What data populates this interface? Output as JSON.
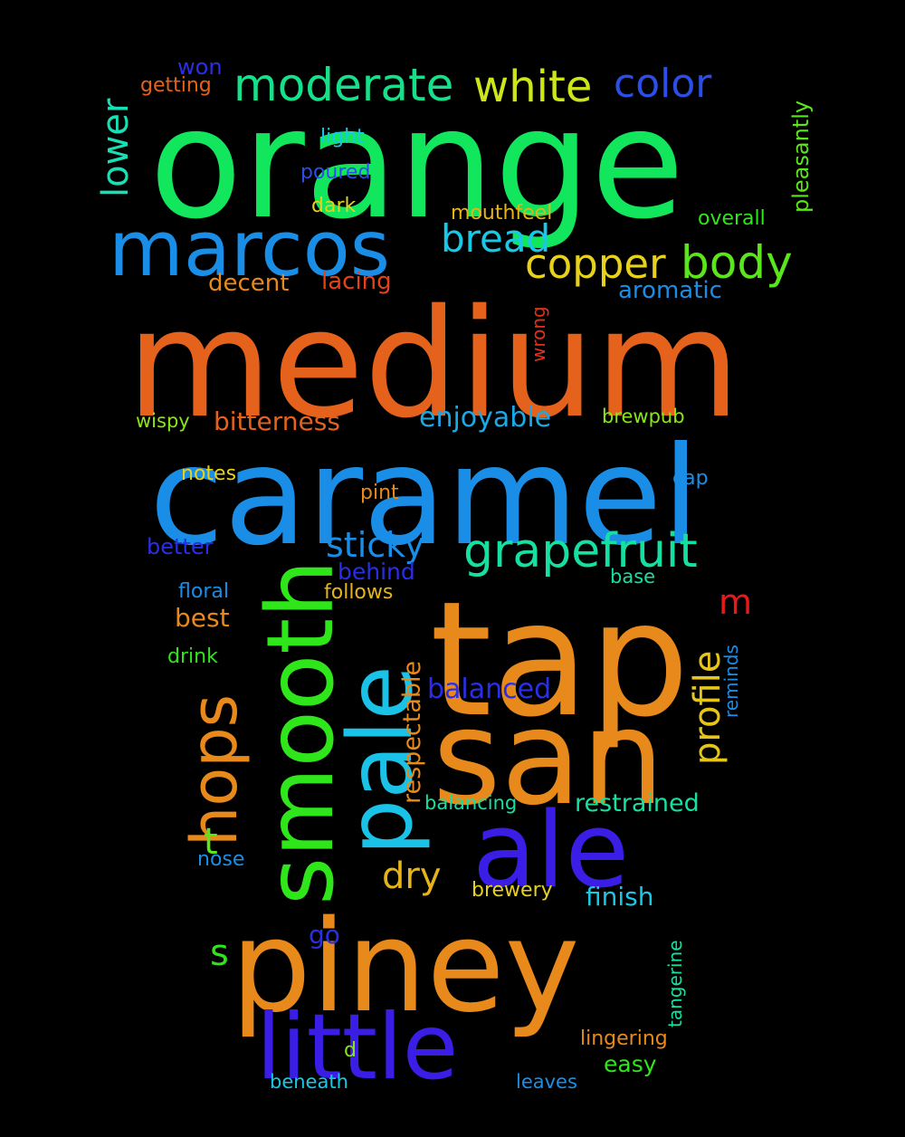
{
  "words": [
    {
      "text": "orange",
      "color": "#12e65c"
    },
    {
      "text": "medium",
      "color": "#e4621b"
    },
    {
      "text": "caramel",
      "color": "#1a8ee6"
    },
    {
      "text": "tap",
      "color": "#e8891c"
    },
    {
      "text": "san",
      "color": "#e8891c"
    },
    {
      "text": "piney",
      "color": "#e8891c"
    },
    {
      "text": "ale",
      "color": "#3a1ee6"
    },
    {
      "text": "little",
      "color": "#3a1ee6"
    },
    {
      "text": "marcos",
      "color": "#1a8ee6"
    },
    {
      "text": "smooth",
      "color": "#2ee61a"
    },
    {
      "text": "pale",
      "color": "#19c2e6"
    },
    {
      "text": "hops",
      "color": "#e8891c"
    },
    {
      "text": "grapefruit",
      "color": "#16e0a0"
    },
    {
      "text": "moderate",
      "color": "#16e08a"
    },
    {
      "text": "white",
      "color": "#cde61a"
    },
    {
      "text": "color",
      "color": "#2a4ee6"
    },
    {
      "text": "copper",
      "color": "#e6d21a"
    },
    {
      "text": "body",
      "color": "#5ae61a"
    },
    {
      "text": "bread",
      "color": "#19c8e6"
    },
    {
      "text": "lower",
      "color": "#16e0b4"
    },
    {
      "text": "profile",
      "color": "#e6c41a"
    },
    {
      "text": "sticky",
      "color": "#1a8ee6"
    },
    {
      "text": "dry",
      "color": "#e6b41a"
    },
    {
      "text": "enjoyable",
      "color": "#1aa8e6"
    },
    {
      "text": "bitterness",
      "color": "#e4621b"
    },
    {
      "text": "balanced",
      "color": "#2a2ee6"
    },
    {
      "text": "restrained",
      "color": "#16e0a0"
    },
    {
      "text": "finish",
      "color": "#19c8e6"
    },
    {
      "text": "respectable",
      "color": "#e8891c"
    },
    {
      "text": "pleasantly",
      "color": "#5ae61a"
    },
    {
      "text": "aromatic",
      "color": "#1a8ee6"
    },
    {
      "text": "decent",
      "color": "#e8891c"
    },
    {
      "text": "lacing",
      "color": "#e6421a"
    },
    {
      "text": "mouthfeel",
      "color": "#e6b41a"
    },
    {
      "text": "overall",
      "color": "#2ee61a"
    },
    {
      "text": "light",
      "color": "#19c8e6"
    },
    {
      "text": "poured",
      "color": "#2a4ee6"
    },
    {
      "text": "dark",
      "color": "#e6d21a"
    },
    {
      "text": "won",
      "color": "#2a2ee6"
    },
    {
      "text": "getting",
      "color": "#e4621b"
    },
    {
      "text": "wrong",
      "color": "#e6301a"
    },
    {
      "text": "wispy",
      "color": "#8ae61a"
    },
    {
      "text": "brewpub",
      "color": "#8ae61a"
    },
    {
      "text": "notes",
      "color": "#e6d21a"
    },
    {
      "text": "pint",
      "color": "#e8891c"
    },
    {
      "text": "cap",
      "color": "#1a8ee6"
    },
    {
      "text": "better",
      "color": "#2a2ee6"
    },
    {
      "text": "behind",
      "color": "#2a2ee6"
    },
    {
      "text": "floral",
      "color": "#1a8ee6"
    },
    {
      "text": "follows",
      "color": "#e6b41a"
    },
    {
      "text": "base",
      "color": "#16e0a0"
    },
    {
      "text": "best",
      "color": "#e8891c"
    },
    {
      "text": "m",
      "color": "#e61a1a"
    },
    {
      "text": "drink",
      "color": "#2ee61a"
    },
    {
      "text": "reminds",
      "color": "#1a8ee6"
    },
    {
      "text": "t",
      "color": "#5ae61a"
    },
    {
      "text": "balancing",
      "color": "#16e0a0"
    },
    {
      "text": "nose",
      "color": "#1a8ee6"
    },
    {
      "text": "brewery",
      "color": "#e6d21a"
    },
    {
      "text": "s",
      "color": "#2ee61a"
    },
    {
      "text": "go",
      "color": "#2a2ee6"
    },
    {
      "text": "tangerine",
      "color": "#16e0a0"
    },
    {
      "text": "lingering",
      "color": "#e8891c"
    },
    {
      "text": "easy",
      "color": "#2ee61a"
    },
    {
      "text": "d",
      "color": "#8ae61a"
    },
    {
      "text": "beneath",
      "color": "#19c8e6"
    },
    {
      "text": "leaves",
      "color": "#1a8ee6"
    }
  ]
}
